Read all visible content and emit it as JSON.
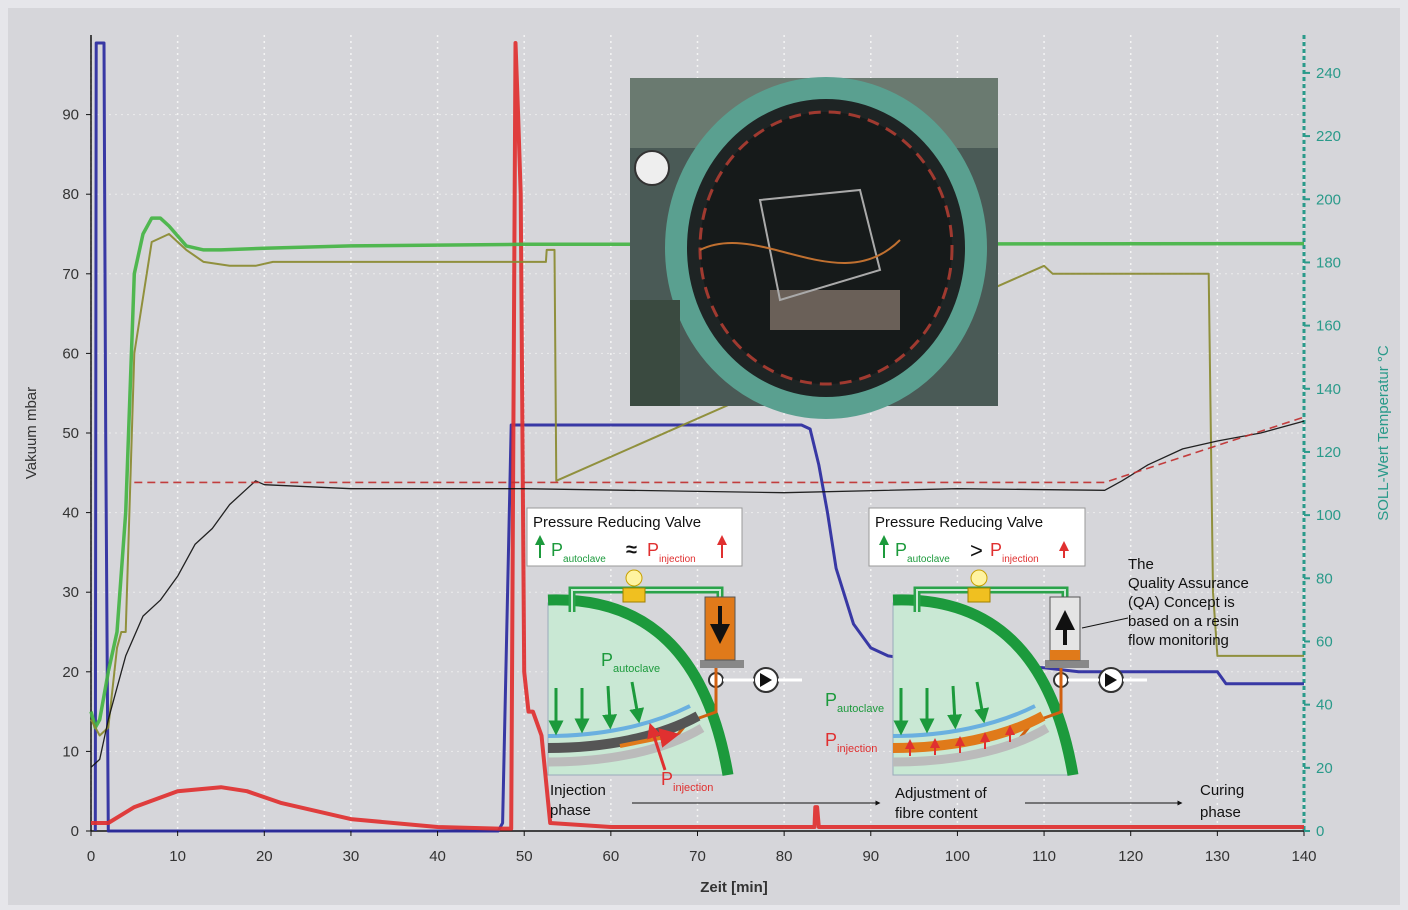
{
  "chart_data": {
    "type": "line",
    "xlabel": "Zeit [min]",
    "ylabel": "Vakuum mbar",
    "y2label": "SOLL-Wert Temperatur °C",
    "xlim": [
      0,
      140
    ],
    "xticks": [
      0,
      10,
      20,
      30,
      40,
      50,
      60,
      70,
      80,
      90,
      100,
      110,
      120,
      130,
      140
    ],
    "ylim": [
      0,
      100
    ],
    "yticks": [
      0,
      10,
      20,
      30,
      40,
      50,
      60,
      70,
      80,
      90
    ],
    "y2lim": [
      0,
      252
    ],
    "y2ticks": [
      0,
      20,
      40,
      60,
      80,
      100,
      120,
      140,
      160,
      180,
      200,
      220,
      240
    ],
    "grid": true,
    "series": [
      {
        "color": "#2a2aa0",
        "x": [
          0.5,
          0.6,
          1.5,
          1.7,
          2,
          47,
          47.5,
          48.5,
          52,
          70,
          82,
          83,
          84,
          85,
          86,
          88,
          90,
          92,
          95,
          100,
          110,
          114,
          130,
          131,
          140
        ],
        "values": [
          0,
          99,
          99,
          50,
          0,
          0,
          1,
          51,
          51,
          51,
          51,
          50.5,
          46,
          40,
          33,
          26,
          23,
          22,
          21.5,
          21,
          20.5,
          20,
          20,
          18.5,
          18.5
        ]
      },
      {
        "color": "#e03030",
        "x": [
          0,
          2,
          5,
          10,
          15,
          18,
          22,
          30,
          40,
          47,
          48.5,
          49,
          49.3,
          49.6,
          50,
          50.5,
          51,
          52,
          53,
          60,
          83.5,
          83.6,
          83.8,
          84,
          140
        ],
        "values": [
          1,
          1,
          3,
          5,
          5.5,
          5,
          3.5,
          1.5,
          0.5,
          0.3,
          0.3,
          99,
          90,
          80,
          20,
          15,
          15,
          12,
          1,
          0.5,
          0.5,
          3,
          3,
          0.5,
          0.5
        ]
      },
      {
        "color": "#44b444",
        "x": [
          0,
          0.5,
          1,
          2,
          3,
          4,
          5,
          6,
          7,
          8,
          9,
          11,
          13,
          15,
          20,
          30,
          50,
          140
        ],
        "values": [
          15,
          13,
          14,
          20,
          25,
          40,
          70,
          75,
          77,
          77,
          76,
          73.5,
          73,
          73,
          73.2,
          73.5,
          73.7,
          73.8
        ]
      },
      {
        "color": "#8a8a30",
        "x": [
          0,
          1,
          2,
          3,
          3.5,
          4,
          5,
          7,
          9,
          11,
          13,
          16,
          19,
          21,
          30,
          52.5,
          52.6,
          53.5,
          53.7,
          110,
          111,
          129,
          129.5,
          130,
          140
        ],
        "values": [
          14,
          12,
          13,
          23,
          25,
          25,
          60,
          74,
          75,
          73,
          71.5,
          71,
          71,
          71.5,
          71.5,
          71.5,
          73,
          73,
          44,
          71,
          70,
          70,
          30,
          22,
          22
        ]
      },
      {
        "color": "#111111",
        "x": [
          0,
          1,
          2,
          4,
          6,
          8,
          10,
          12,
          14,
          16,
          18,
          19,
          20,
          30,
          50,
          80,
          100,
          117,
          119,
          122,
          126,
          130,
          135,
          140
        ],
        "values": [
          8,
          9,
          14,
          22,
          27,
          29,
          32,
          36,
          38,
          41,
          43,
          44,
          43.5,
          43,
          43,
          42.5,
          43,
          42.8,
          44,
          46,
          48,
          49,
          50,
          51.5
        ]
      },
      {
        "color": "#c03030",
        "dash": true,
        "x": [
          5,
          117,
          140
        ],
        "values": [
          43.8,
          43.8,
          52
        ]
      }
    ],
    "annotations": {
      "valve1": {
        "title": "Pressure Reducing Valve",
        "p1": {
          "main": "P",
          "sub": "autoclave"
        },
        "relation": "≈",
        "p2": {
          "main": "P",
          "sub": "injection"
        }
      },
      "valve2": {
        "title": "Pressure Reducing Valve",
        "p1": {
          "main": "P",
          "sub": "autoclave"
        },
        "relation": ">",
        "p2": {
          "main": "P",
          "sub": "injection"
        }
      },
      "diagram1_labels": [
        {
          "main": "P",
          "sub": "autoclave"
        },
        {
          "main": "P",
          "sub": "injection"
        }
      ],
      "diagram2_labels": [
        {
          "main": "P",
          "sub": "autoclave"
        },
        {
          "main": "P",
          "sub": "injection"
        }
      ],
      "qa_note": [
        "The",
        "Quality Assurance",
        "(QA) Concept is",
        "based on a resin",
        "flow monitoring"
      ],
      "phases": [
        [
          "Injection",
          "phase"
        ],
        [
          "Adjustment of",
          "fibre content"
        ],
        [
          "Curing",
          "phase"
        ]
      ]
    }
  }
}
